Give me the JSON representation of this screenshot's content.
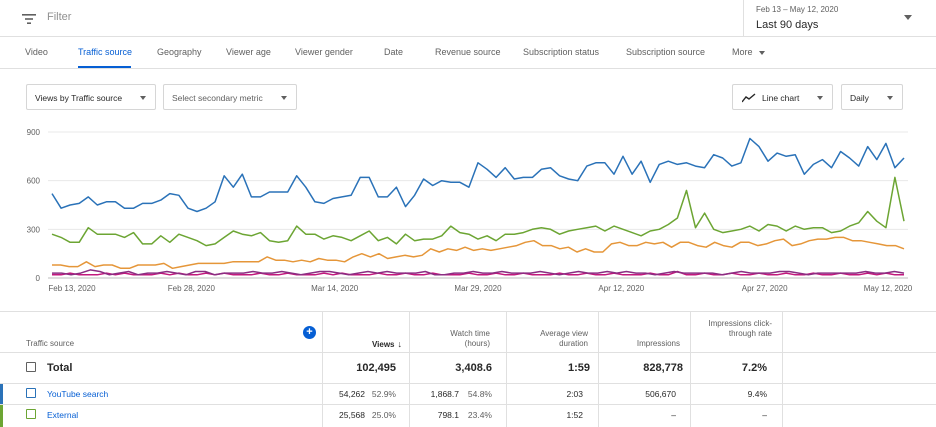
{
  "filter": {
    "placeholder": "Filter",
    "icon": "filter-icon"
  },
  "date": {
    "range": "Feb 13 – May 12, 2020",
    "preset": "Last 90 days"
  },
  "tabs": [
    {
      "label": "Video"
    },
    {
      "label": "Traffic source"
    },
    {
      "label": "Geography"
    },
    {
      "label": "Viewer age"
    },
    {
      "label": "Viewer gender"
    },
    {
      "label": "Date"
    },
    {
      "label": "Revenue source"
    },
    {
      "label": "Subscription status"
    },
    {
      "label": "Subscription source"
    },
    {
      "label": "More"
    }
  ],
  "active_tab": "Traffic source",
  "controls": {
    "metric": "Views by Traffic source",
    "secondary": "Select secondary metric",
    "chart_type": "Line chart",
    "interval": "Daily"
  },
  "chart_data": {
    "type": "line",
    "ylim": [
      0,
      900
    ],
    "yticks": [
      0,
      300,
      600,
      900
    ],
    "x_ticks": [
      "Feb 13, 2020",
      "Feb 28, 2020",
      "Mar 14, 2020",
      "Mar 29, 2020",
      "Apr 12, 2020",
      "Apr 27, 2020",
      "May 12, 2020"
    ],
    "series": [
      {
        "color": "#2a72b8",
        "values": [
          520,
          430,
          450,
          460,
          500,
          450,
          470,
          470,
          430,
          430,
          460,
          460,
          480,
          520,
          510,
          430,
          410,
          430,
          470,
          630,
          560,
          640,
          500,
          500,
          530,
          530,
          530,
          630,
          560,
          470,
          460,
          490,
          500,
          510,
          620,
          620,
          500,
          500,
          560,
          440,
          510,
          610,
          570,
          600,
          590,
          590,
          560,
          710,
          670,
          620,
          680,
          610,
          620,
          620,
          670,
          680,
          630,
          610,
          600,
          690,
          710,
          710,
          640,
          750,
          640,
          720,
          590,
          700,
          720,
          700,
          710,
          690,
          680,
          760,
          740,
          690,
          710,
          860,
          810,
          720,
          770,
          750,
          760,
          640,
          700,
          730,
          680,
          780,
          740,
          690,
          810,
          730,
          830,
          680,
          740
        ]
      },
      {
        "color": "#6ca533",
        "values": [
          270,
          250,
          220,
          220,
          310,
          270,
          270,
          270,
          250,
          280,
          210,
          210,
          260,
          220,
          270,
          250,
          230,
          200,
          210,
          250,
          290,
          270,
          260,
          280,
          230,
          220,
          230,
          320,
          270,
          270,
          240,
          260,
          250,
          230,
          260,
          290,
          230,
          250,
          210,
          270,
          230,
          240,
          240,
          260,
          320,
          280,
          270,
          240,
          260,
          230,
          270,
          270,
          280,
          300,
          310,
          300,
          270,
          290,
          300,
          310,
          320,
          290,
          320,
          300,
          280,
          260,
          290,
          300,
          330,
          370,
          540,
          310,
          400,
          300,
          280,
          290,
          300,
          320,
          290,
          330,
          320,
          290,
          320,
          300,
          310,
          310,
          280,
          290,
          320,
          340,
          410,
          350,
          310,
          620,
          350
        ]
      },
      {
        "color": "#e59639",
        "values": [
          80,
          80,
          70,
          70,
          100,
          70,
          80,
          80,
          60,
          60,
          80,
          80,
          80,
          90,
          60,
          70,
          80,
          90,
          90,
          90,
          90,
          100,
          100,
          100,
          100,
          130,
          110,
          110,
          100,
          110,
          100,
          120,
          110,
          110,
          100,
          130,
          150,
          130,
          150,
          120,
          130,
          140,
          130,
          140,
          180,
          160,
          180,
          170,
          190,
          170,
          180,
          170,
          180,
          190,
          200,
          220,
          230,
          200,
          200,
          180,
          190,
          160,
          180,
          160,
          160,
          210,
          220,
          200,
          200,
          220,
          210,
          220,
          190,
          220,
          220,
          200,
          190,
          220,
          200,
          190,
          220,
          220,
          200,
          210,
          230,
          240,
          200,
          210,
          230,
          240,
          240,
          250,
          250,
          230,
          230,
          220,
          210,
          200,
          200,
          180
        ]
      },
      {
        "color": "#8b2d82",
        "values": [
          30,
          30,
          20,
          30,
          50,
          40,
          20,
          30,
          40,
          20,
          30,
          30,
          40,
          30,
          20,
          40,
          40,
          20,
          30,
          30,
          30,
          40,
          30,
          30,
          40,
          30,
          20,
          30,
          40,
          40,
          30,
          20,
          30,
          40,
          30,
          40,
          30,
          30,
          30,
          40,
          20,
          20,
          30,
          30,
          40,
          30,
          30,
          40,
          30,
          30,
          30,
          40,
          30,
          20,
          30,
          40,
          30,
          30,
          40,
          30,
          40,
          30,
          30,
          20,
          30,
          40,
          30,
          30,
          30,
          30,
          20,
          30,
          40,
          30,
          30,
          30,
          40,
          40,
          30,
          20,
          30,
          30,
          30,
          30,
          30,
          40,
          30,
          30,
          40,
          30
        ]
      },
      {
        "color": "#c2187d",
        "values": [
          20,
          20,
          30,
          20,
          20,
          20,
          30,
          20,
          30,
          20,
          20,
          20,
          30,
          20,
          30,
          20,
          20,
          30,
          20,
          30,
          20,
          20,
          20,
          30,
          20,
          20,
          30,
          20,
          20,
          20,
          30,
          20,
          30,
          20,
          20,
          20,
          30,
          20,
          20,
          30,
          20,
          20,
          30,
          20,
          20,
          20,
          30,
          20,
          20,
          30,
          20,
          20,
          30,
          20,
          20,
          20,
          30,
          20,
          20,
          30,
          20,
          20,
          30,
          20,
          20,
          20,
          30,
          20,
          20,
          40,
          20,
          20,
          30,
          20,
          20,
          30,
          20,
          20,
          30,
          20,
          20,
          30,
          20,
          20,
          30,
          20,
          20,
          30,
          20,
          20,
          30,
          20,
          30,
          20,
          20
        ]
      }
    ]
  },
  "table": {
    "headers": {
      "source": "Traffic source",
      "views": "Views",
      "watch_time": "Watch time (hours)",
      "avg_view": "Average view duration",
      "impressions": "Impressions",
      "ctr": "Impressions click-through rate"
    },
    "total": {
      "label": "Total",
      "views": "102,495",
      "watch_time": "3,408.6",
      "avg_view": "1:59",
      "impressions": "828,778",
      "ctr": "7.2%"
    },
    "rows": [
      {
        "label": "YouTube search",
        "color": "#2a72b8",
        "views": "54,262",
        "views_pct": "52.9%",
        "watch_time": "1,868.7",
        "watch_pct": "54.8%",
        "avg_view": "2:03",
        "impressions": "506,670",
        "ctr": "9.4%"
      },
      {
        "label": "External",
        "color": "#6ca533",
        "views": "25,568",
        "views_pct": "25.0%",
        "watch_time": "798.1",
        "watch_pct": "23.4%",
        "avg_view": "1:52",
        "impressions": "–",
        "ctr": "–"
      }
    ]
  }
}
